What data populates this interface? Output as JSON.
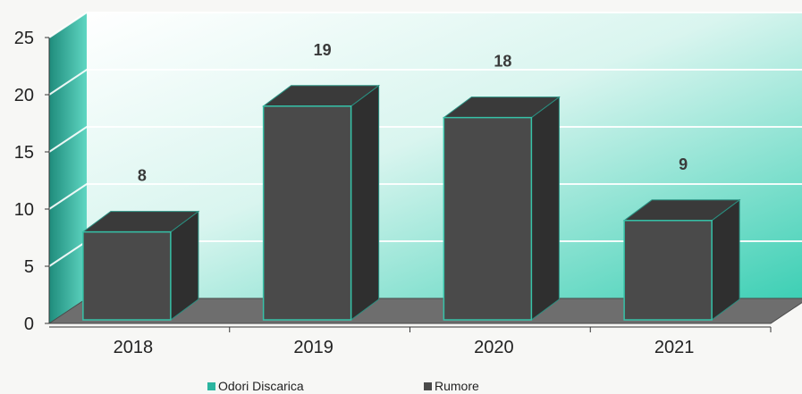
{
  "chart_data": {
    "type": "bar",
    "categories": [
      "2018",
      "2019",
      "2020",
      "2021"
    ],
    "series": [
      {
        "name": "Odori Discarica",
        "values": [
          0,
          0,
          0,
          0
        ]
      },
      {
        "name": "Rumore",
        "values": [
          8,
          19,
          18,
          9
        ]
      }
    ],
    "data_labels": [
      "8",
      "19",
      "18",
      "9"
    ],
    "ylim": [
      0,
      25
    ],
    "yticks": [
      "0",
      "5",
      "10",
      "15",
      "20",
      "25"
    ],
    "grid": true,
    "legend_position": "bottom",
    "three_d": true,
    "colors": {
      "Odori Discarica": "#2bb5a0",
      "Rumore": "#4a4a4a",
      "wall": "#3fcfb5",
      "floor": "#707070"
    }
  },
  "legend": {
    "items": [
      {
        "label": "Odori Discarica",
        "color": "#2bb5a0"
      },
      {
        "label": "Rumore",
        "color": "#4a4a4a"
      }
    ]
  }
}
